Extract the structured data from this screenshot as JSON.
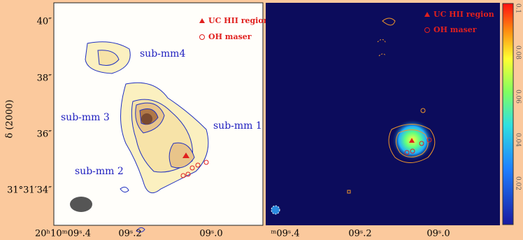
{
  "left_panel": {
    "y_axis_label": "δ (2000)",
    "y_ticks": [
      "40″",
      "38″",
      "36″",
      "31°31′34″"
    ],
    "x_ticks": [
      "20ʰ10ᵐ09ˢ.4",
      "09ˢ.2",
      "09ˢ.0"
    ],
    "legend": [
      "UC HII region",
      "OH maser"
    ],
    "labels": [
      "sub-mm4",
      "sub-mm 3",
      "sub-mm 1",
      "sub-mm 2"
    ]
  },
  "right_panel": {
    "x_ticks": [
      "ᵐ09ˢ.4",
      "09ˢ.2",
      "09ˢ.0"
    ],
    "legend": [
      "UC HII region",
      "OH maser"
    ],
    "colorbar_ticks": [
      "0.1",
      "0.08",
      "0.06",
      "0.04",
      "0.02"
    ]
  }
}
